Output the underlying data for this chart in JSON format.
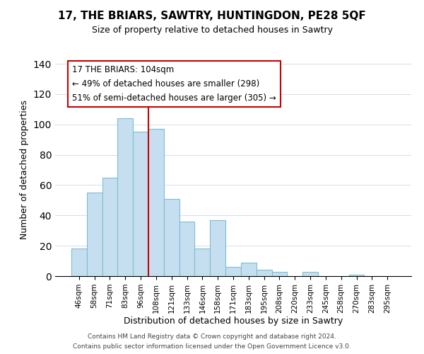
{
  "title": "17, THE BRIARS, SAWTRY, HUNTINGDON, PE28 5QF",
  "subtitle": "Size of property relative to detached houses in Sawtry",
  "xlabel": "Distribution of detached houses by size in Sawtry",
  "ylabel": "Number of detached properties",
  "bar_labels": [
    "46sqm",
    "58sqm",
    "71sqm",
    "83sqm",
    "96sqm",
    "108sqm",
    "121sqm",
    "133sqm",
    "146sqm",
    "158sqm",
    "171sqm",
    "183sqm",
    "195sqm",
    "208sqm",
    "220sqm",
    "233sqm",
    "245sqm",
    "258sqm",
    "270sqm",
    "283sqm",
    "295sqm"
  ],
  "bar_values": [
    18,
    55,
    65,
    104,
    95,
    97,
    51,
    36,
    18,
    37,
    6,
    9,
    4,
    3,
    0,
    3,
    0,
    0,
    1,
    0,
    0
  ],
  "bar_color": "#c5dff0",
  "bar_edge_color": "#7fbcd2",
  "vline_color": "#cc0000",
  "annotation_title": "17 THE BRIARS: 104sqm",
  "annotation_line1": "← 49% of detached houses are smaller (298)",
  "annotation_line2": "51% of semi-detached houses are larger (305) →",
  "annotation_box_edge": "#cc0000",
  "ylim": [
    0,
    140
  ],
  "footnote1": "Contains HM Land Registry data © Crown copyright and database right 2024.",
  "footnote2": "Contains public sector information licensed under the Open Government Licence v3.0."
}
